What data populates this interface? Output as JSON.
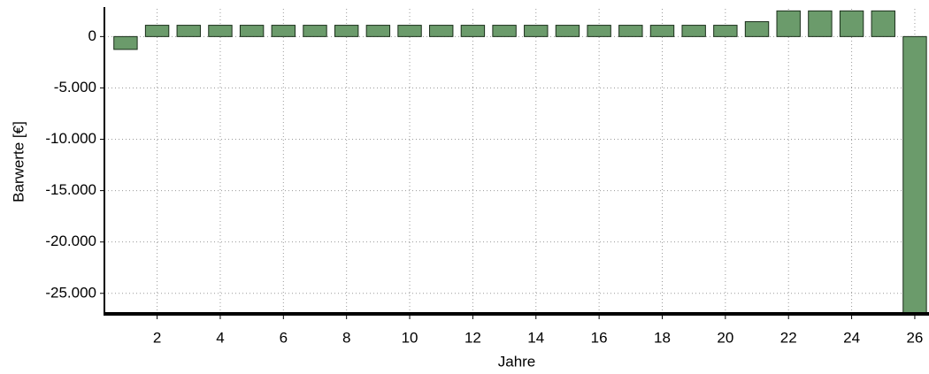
{
  "chart_data": {
    "type": "bar",
    "x_label": "Jahre",
    "y_label": "Barwerte [€]",
    "x": [
      1,
      2,
      3,
      4,
      5,
      6,
      7,
      8,
      9,
      10,
      11,
      12,
      13,
      14,
      15,
      16,
      17,
      18,
      19,
      20,
      21,
      22,
      23,
      24,
      25,
      26
    ],
    "values": [
      -1250,
      1100,
      1100,
      1100,
      1100,
      1100,
      1100,
      1100,
      1100,
      1100,
      1100,
      1100,
      1100,
      1100,
      1100,
      1100,
      1100,
      1100,
      1100,
      1100,
      1450,
      2500,
      2500,
      2500,
      2500,
      -27500
    ],
    "color": "#6b9b6b",
    "xlim": [
      0.33,
      26.45
    ],
    "xticks": [
      2,
      4,
      6,
      8,
      10,
      12,
      14,
      16,
      18,
      20,
      22,
      24,
      26
    ],
    "ylim": [
      -27000,
      2700
    ],
    "yticks": [
      {
        "value": -25000,
        "label": "-25.000"
      },
      {
        "value": -20000,
        "label": "-20.000"
      },
      {
        "value": -15000,
        "label": "-15.000"
      },
      {
        "value": -10000,
        "label": "-10.000"
      },
      {
        "value": -5000,
        "label": "-5.000"
      },
      0
    ],
    "grid": true
  }
}
